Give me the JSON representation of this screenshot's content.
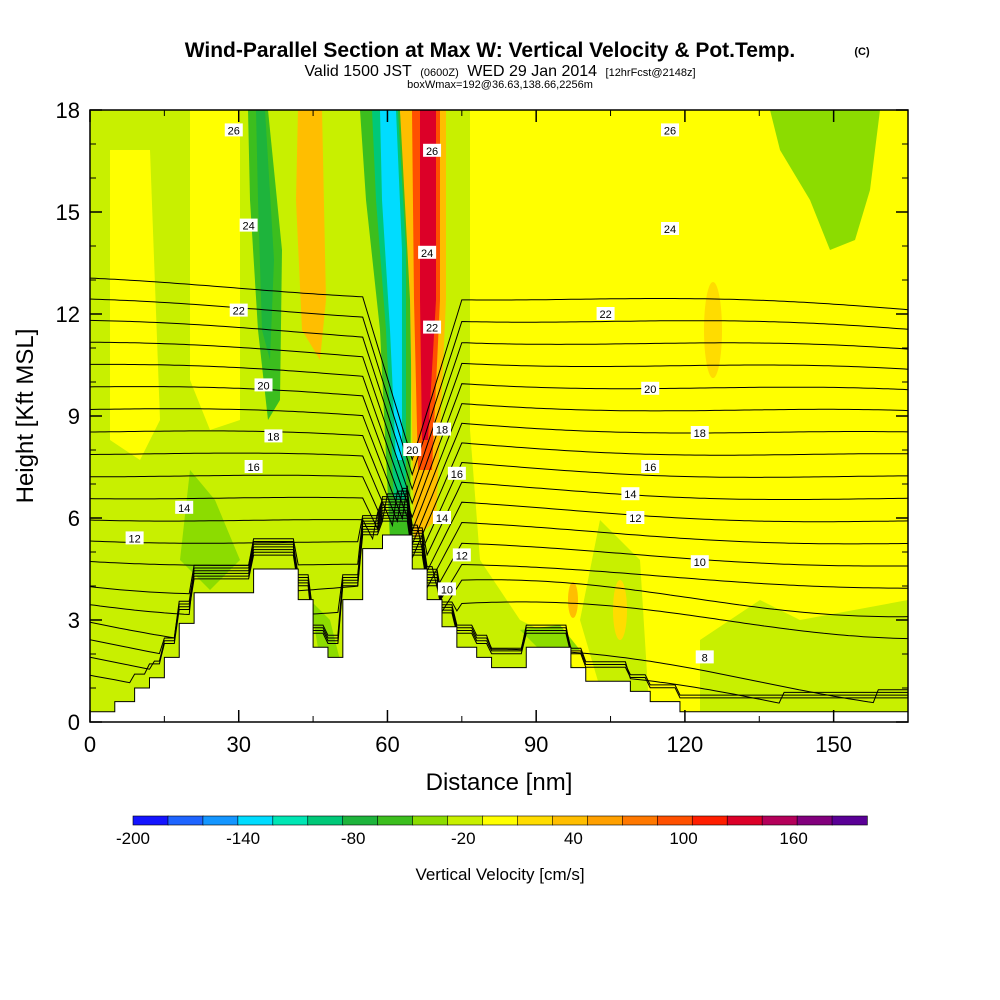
{
  "chart_data": {
    "type": "heatmap",
    "title": "Wind-Parallel Section at Max W: Vertical Velocity & Pot.Temp.",
    "title_mark": "(C)",
    "subtitle_parts": [
      "Valid 1500 JST",
      "(0600Z)",
      "WED 29 Jan 2014",
      "[12hrFcst@2148z]"
    ],
    "subtitle2": "boxWmax=192@36.63,138.66,2256m",
    "xlabel": "Distance [nm]",
    "ylabel": "Height [Kft MSL]",
    "xlim": [
      0,
      165
    ],
    "ylim": [
      0,
      18
    ],
    "x_ticks": [
      "0",
      "30",
      "60",
      "90",
      "120",
      "150"
    ],
    "y_ticks": [
      "0",
      "3",
      "6",
      "9",
      "12",
      "15",
      "18"
    ],
    "colorbar": {
      "label": "Vertical Velocity [cm/s]",
      "range": [
        -200,
        200
      ],
      "tick_labels": [
        "-200",
        "-140",
        "-80",
        "-20",
        "40",
        "100",
        "160"
      ],
      "colors": [
        "#1414ff",
        "#1e64ff",
        "#1496ff",
        "#00dcff",
        "#00e6b4",
        "#00c878",
        "#1eb43c",
        "#3cbe1e",
        "#8cdc00",
        "#c8f000",
        "#ffff00",
        "#ffdc00",
        "#ffbe00",
        "#ffa000",
        "#ff7800",
        "#ff5000",
        "#ff1e00",
        "#dc0028",
        "#b4005a",
        "#82007d",
        "#5a0096"
      ]
    },
    "terrain": [
      [
        0,
        0.3
      ],
      [
        5,
        0.3
      ],
      [
        5,
        0.6
      ],
      [
        9,
        0.6
      ],
      [
        9,
        1.0
      ],
      [
        12,
        1.0
      ],
      [
        12,
        1.3
      ],
      [
        15,
        1.3
      ],
      [
        15,
        1.9
      ],
      [
        18,
        1.9
      ],
      [
        18,
        2.9
      ],
      [
        21,
        2.9
      ],
      [
        21,
        3.8
      ],
      [
        33,
        3.8
      ],
      [
        33,
        4.5
      ],
      [
        42,
        4.5
      ],
      [
        42,
        3.6
      ],
      [
        45,
        3.6
      ],
      [
        45,
        2.2
      ],
      [
        48,
        2.2
      ],
      [
        48,
        1.9
      ],
      [
        51,
        1.9
      ],
      [
        51,
        3.6
      ],
      [
        55,
        3.6
      ],
      [
        55,
        5.1
      ],
      [
        59,
        5.1
      ],
      [
        59,
        5.5
      ],
      [
        65,
        5.5
      ],
      [
        65,
        4.5
      ],
      [
        68,
        4.5
      ],
      [
        68,
        3.6
      ],
      [
        71,
        3.6
      ],
      [
        71,
        2.8
      ],
      [
        74,
        2.8
      ],
      [
        74,
        2.2
      ],
      [
        78,
        2.2
      ],
      [
        78,
        1.9
      ],
      [
        81,
        1.9
      ],
      [
        81,
        1.6
      ],
      [
        88,
        1.6
      ],
      [
        88,
        2.2
      ],
      [
        97,
        2.2
      ],
      [
        97,
        1.6
      ],
      [
        100,
        1.6
      ],
      [
        100,
        1.2
      ],
      [
        109,
        1.2
      ],
      [
        109,
        0.9
      ],
      [
        113,
        0.9
      ],
      [
        113,
        0.6
      ],
      [
        119,
        0.6
      ],
      [
        119,
        0.3
      ],
      [
        165,
        0.3
      ]
    ],
    "theta_contour_levels": [
      8,
      9,
      10,
      11,
      12,
      13,
      14,
      15,
      16,
      17,
      18,
      19,
      20,
      21,
      22,
      23,
      24,
      25,
      26,
      27
    ],
    "theta_labels": [
      {
        "x": 29,
        "y": 17.4,
        "text": "26"
      },
      {
        "x": 32,
        "y": 14.6,
        "text": "24"
      },
      {
        "x": 30,
        "y": 12.1,
        "text": "22"
      },
      {
        "x": 35,
        "y": 9.9,
        "text": "20"
      },
      {
        "x": 37,
        "y": 8.4,
        "text": "18"
      },
      {
        "x": 33,
        "y": 7.5,
        "text": "16"
      },
      {
        "x": 19,
        "y": 6.3,
        "text": "14"
      },
      {
        "x": 9,
        "y": 5.4,
        "text": "12"
      },
      {
        "x": 69,
        "y": 16.8,
        "text": "26"
      },
      {
        "x": 68,
        "y": 13.8,
        "text": "24"
      },
      {
        "x": 69,
        "y": 11.6,
        "text": "22"
      },
      {
        "x": 65,
        "y": 8.0,
        "text": "20"
      },
      {
        "x": 71,
        "y": 8.6,
        "text": "18"
      },
      {
        "x": 74,
        "y": 7.3,
        "text": "16"
      },
      {
        "x": 71,
        "y": 6.0,
        "text": "14"
      },
      {
        "x": 75,
        "y": 4.9,
        "text": "12"
      },
      {
        "x": 72,
        "y": 3.9,
        "text": "10"
      },
      {
        "x": 117,
        "y": 17.4,
        "text": "26"
      },
      {
        "x": 117,
        "y": 14.5,
        "text": "24"
      },
      {
        "x": 104,
        "y": 12.0,
        "text": "22"
      },
      {
        "x": 113,
        "y": 9.8,
        "text": "20"
      },
      {
        "x": 123,
        "y": 8.5,
        "text": "18"
      },
      {
        "x": 113,
        "y": 7.5,
        "text": "16"
      },
      {
        "x": 109,
        "y": 6.7,
        "text": "14"
      },
      {
        "x": 110,
        "y": 6.0,
        "text": "12"
      },
      {
        "x": 123,
        "y": 4.7,
        "text": "10"
      },
      {
        "x": 124,
        "y": 1.9,
        "text": "8"
      }
    ]
  }
}
